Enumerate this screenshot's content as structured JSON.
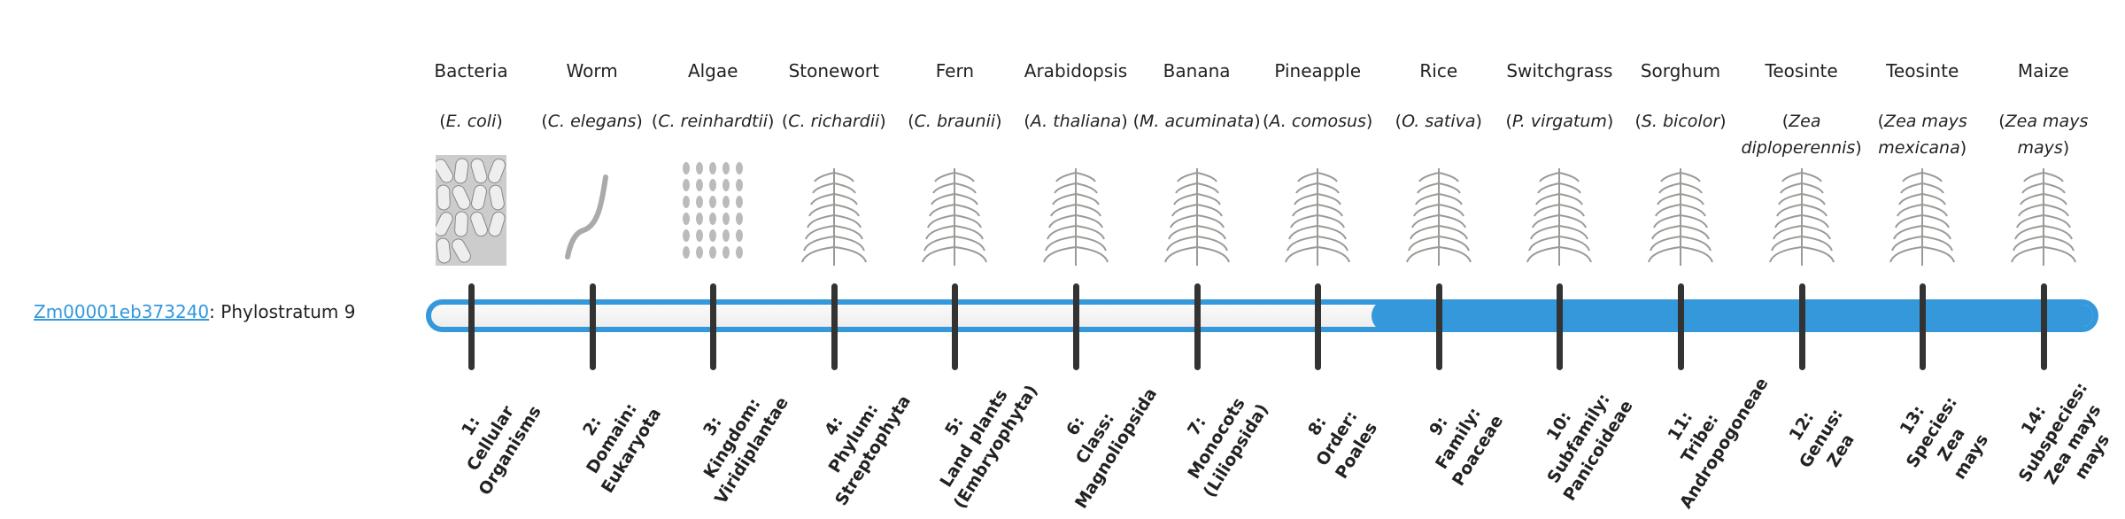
{
  "gene": {
    "id": "Zm00001eb373240",
    "suffix": ": Phylostratum 9",
    "phylostratum": 9
  },
  "colors": {
    "accent": "#3498db",
    "tick": "#333333"
  },
  "organisms": [
    {
      "common": "Bacteria",
      "latin": "E. coli",
      "icon": "bacteria-icon"
    },
    {
      "common": "Worm",
      "latin": "C. elegans",
      "icon": "worm-icon"
    },
    {
      "common": "Algae",
      "latin": "C. reinhardtii",
      "icon": "algae-icon"
    },
    {
      "common": "Stonewort",
      "latin": "C. richardii",
      "icon": "stonewort-icon"
    },
    {
      "common": "Fern",
      "latin": "C. braunii",
      "icon": "fern-icon"
    },
    {
      "common": "Arabidopsis",
      "latin": "A. thaliana",
      "icon": "arabidopsis-icon"
    },
    {
      "common": "Banana",
      "latin": "M. acuminata",
      "icon": "banana-icon"
    },
    {
      "common": "Pineapple",
      "latin": "A. comosus",
      "icon": "pineapple-icon"
    },
    {
      "common": "Rice",
      "latin": "O. sativa",
      "icon": "rice-icon"
    },
    {
      "common": "Switchgrass",
      "latin": "P. virgatum",
      "icon": "switchgrass-icon"
    },
    {
      "common": "Sorghum",
      "latin": "S. bicolor",
      "icon": "sorghum-icon"
    },
    {
      "common": "Teosinte",
      "latin": "Zea diploperennis",
      "icon": "teosinte-icon"
    },
    {
      "common": "Teosinte",
      "latin": "Zea mays mexicana",
      "icon": "teosinte-icon"
    },
    {
      "common": "Maize",
      "latin": "Zea mays mays",
      "icon": "maize-icon"
    }
  ],
  "strata": [
    {
      "lines": [
        "1:",
        "Cellular",
        "Organisms"
      ]
    },
    {
      "lines": [
        "2:",
        "Domain:",
        "Eukaryota"
      ]
    },
    {
      "lines": [
        "3:",
        "Kingdom:",
        "Viridiplantae"
      ]
    },
    {
      "lines": [
        "4:",
        "Phylum:",
        "Streptophyta"
      ]
    },
    {
      "lines": [
        "5:",
        "Land plants",
        "(Embryophyta)"
      ]
    },
    {
      "lines": [
        "6:",
        "Class:",
        "Magnoliopsida"
      ]
    },
    {
      "lines": [
        "7:",
        "Monocots",
        "(Liliopsida)"
      ]
    },
    {
      "lines": [
        "8:",
        "Order:",
        "Poales"
      ]
    },
    {
      "lines": [
        "9:",
        "Family:",
        "Poaceae"
      ]
    },
    {
      "lines": [
        "10:",
        "Subfamily:",
        "Panicoideae"
      ]
    },
    {
      "lines": [
        "11:",
        "Tribe:",
        "Andropogoneae"
      ]
    },
    {
      "lines": [
        "12:",
        "Genus:",
        "Zea"
      ]
    },
    {
      "lines": [
        "13:",
        "Species:",
        "Zea",
        "mays"
      ]
    },
    {
      "lines": [
        "14:",
        "Subspecies:",
        "Zea mays",
        "mays"
      ]
    }
  ]
}
